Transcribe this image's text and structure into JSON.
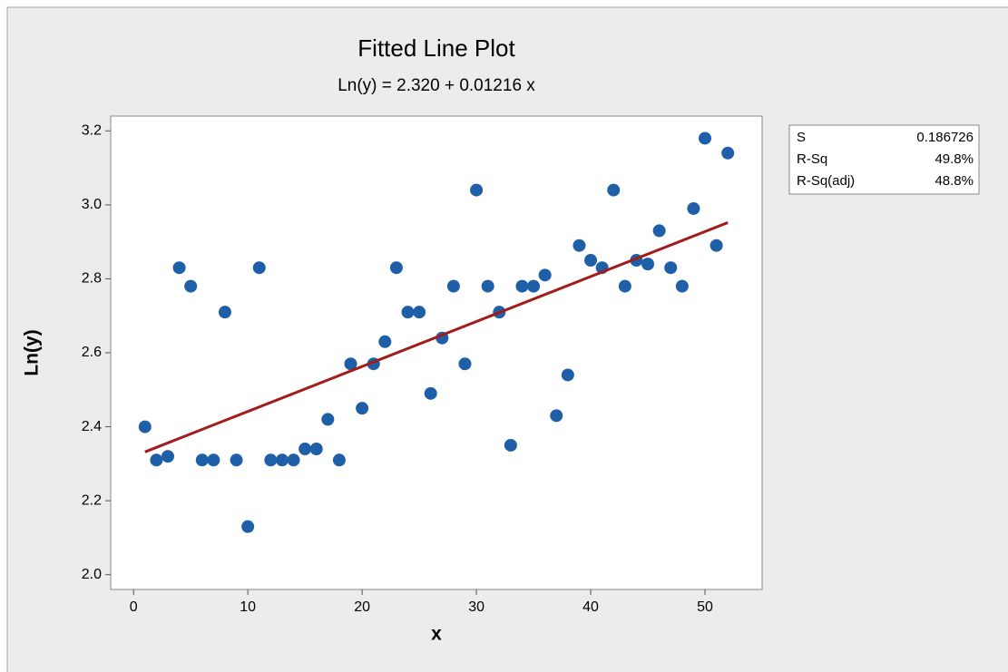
{
  "chart_data": {
    "type": "scatter",
    "title": "Fitted Line Plot",
    "subtitle": "Ln(y) = 2.320 + 0.01216 x",
    "x_label": "x",
    "y_label": "Ln(y)",
    "series": [
      {
        "color": "#1f5fa8",
        "x": [
          1,
          2,
          3,
          4,
          5,
          6,
          7,
          8,
          9,
          10,
          11,
          12,
          13,
          14,
          15,
          16,
          17,
          18,
          19,
          20,
          21,
          22,
          23,
          24,
          25,
          26,
          27,
          28,
          29,
          30,
          31,
          32,
          33,
          34,
          35,
          36,
          37,
          38,
          39,
          40,
          41,
          42,
          43,
          44,
          45,
          46,
          47,
          48,
          49,
          50,
          51,
          52
        ],
        "values": [
          2.4,
          2.31,
          2.32,
          2.83,
          2.78,
          2.31,
          2.31,
          2.71,
          2.31,
          2.13,
          2.83,
          2.31,
          2.31,
          2.31,
          2.34,
          2.34,
          2.42,
          2.31,
          2.57,
          2.45,
          2.57,
          2.63,
          2.83,
          2.71,
          2.71,
          2.49,
          2.64,
          2.78,
          2.57,
          3.04,
          2.78,
          2.71,
          2.35,
          2.78,
          2.78,
          2.81,
          2.43,
          2.54,
          2.89,
          2.85,
          2.83,
          3.04,
          2.78,
          2.85,
          2.84,
          2.93,
          2.83,
          2.78,
          2.99,
          3.18,
          2.89,
          3.14
        ]
      }
    ],
    "fit_line": {
      "color": "#a31c1c",
      "x": [
        1,
        52
      ],
      "values": [
        2.332,
        2.952
      ]
    },
    "stats": [
      {
        "label": "S",
        "value": "0.186726"
      },
      {
        "label": "R-Sq",
        "value": "49.8%"
      },
      {
        "label": "R-Sq(adj)",
        "value": "48.8%"
      }
    ],
    "xlim": [
      -2,
      55
    ],
    "xticks": [
      0,
      10,
      20,
      30,
      40,
      50
    ],
    "ylim": [
      1.96,
      3.24
    ],
    "yticks": [
      {
        "value": 2,
        "label": "2.0"
      },
      2.2,
      2.4,
      2.6,
      2.8,
      {
        "value": 3,
        "label": "3.0"
      },
      3.2
    ]
  }
}
